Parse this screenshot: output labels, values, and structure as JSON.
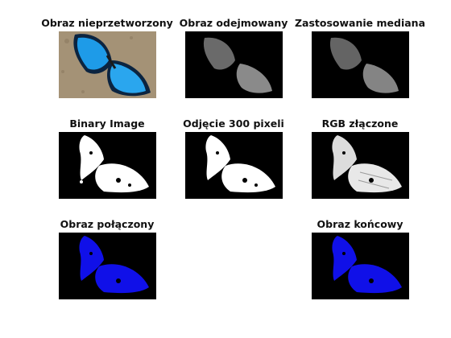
{
  "figure": {
    "panels": [
      {
        "id": "original",
        "title": "Obraz nieprzetworzony",
        "kind": "photo"
      },
      {
        "id": "subtracted",
        "title": "Obraz odejmowany",
        "kind": "gray"
      },
      {
        "id": "median",
        "title": "Zastosowanie mediana",
        "kind": "gray"
      },
      {
        "id": "binary",
        "title": "Binary Image",
        "kind": "binary"
      },
      {
        "id": "removed300",
        "title": "Odjęcie 300 pixeli",
        "kind": "binary"
      },
      {
        "id": "rgb_merged",
        "title": "RGB złączone",
        "kind": "rgb"
      },
      {
        "id": "combined",
        "title": "Obraz połączony",
        "kind": "blue"
      },
      {
        "id": "final",
        "title": "Obraz końcowy",
        "kind": "blue"
      }
    ]
  },
  "colors": {
    "background": "#ffffff",
    "title_text": "#111111",
    "mask_bg": "#000000",
    "binary_fg": "#ffffff",
    "blue_fg": "#1010e8",
    "gray_fg": "#8a8a8a",
    "photo_bg": "#a49276",
    "wing_blue": "#1e9be8",
    "wing_dark": "#0b2440"
  }
}
